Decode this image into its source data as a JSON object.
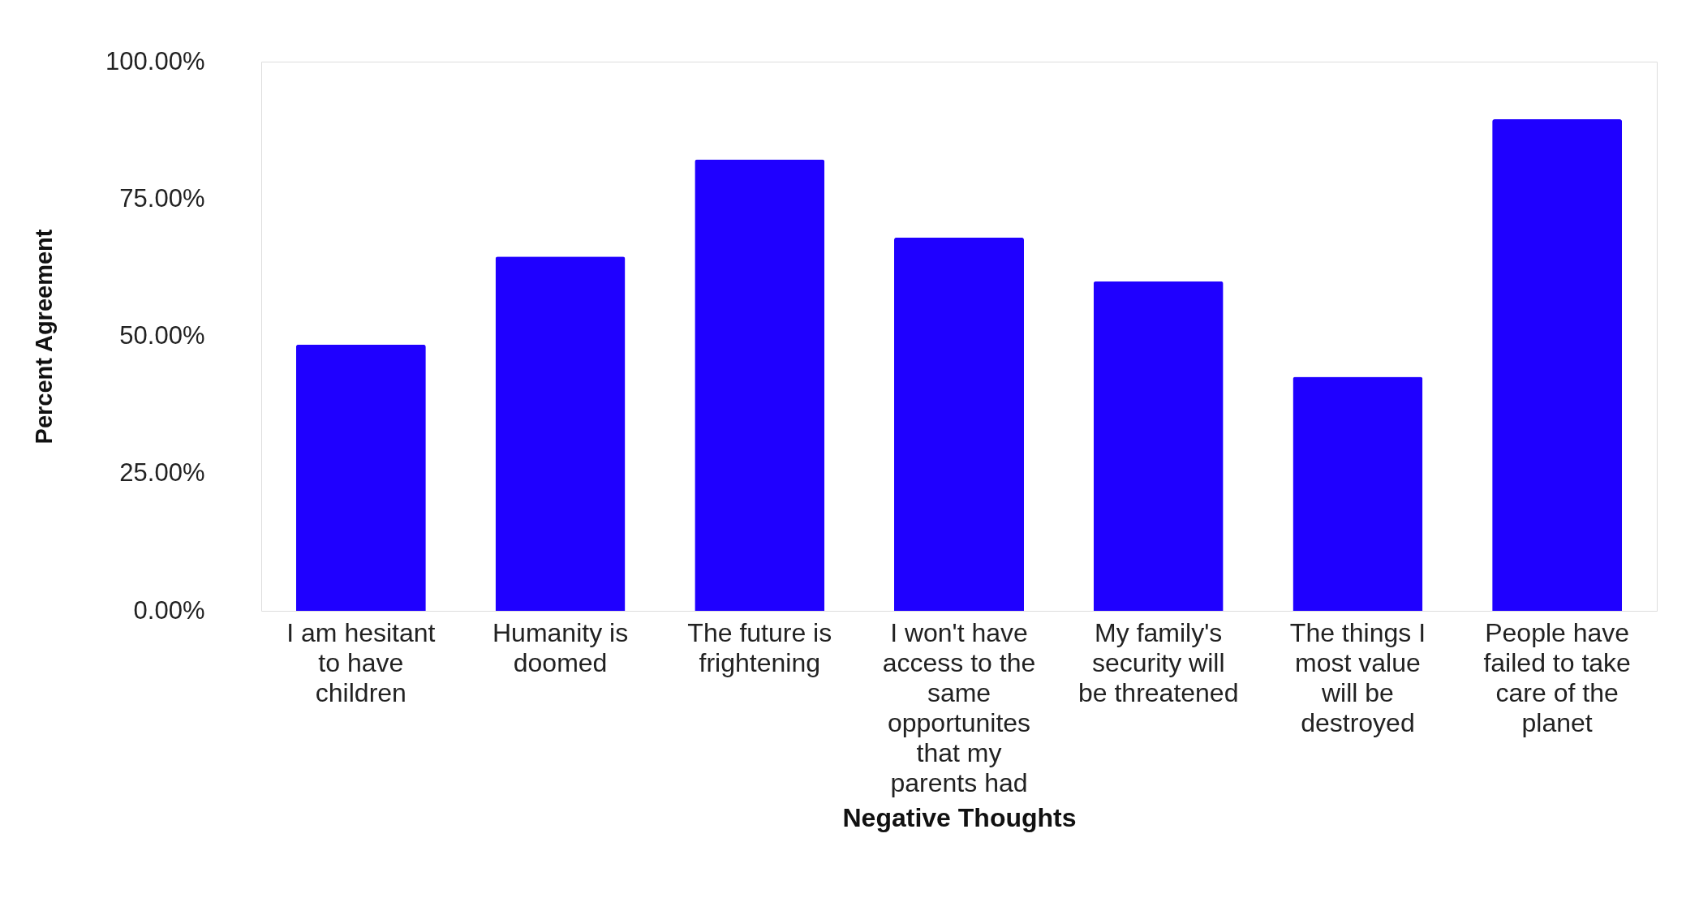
{
  "chart_data": {
    "type": "bar",
    "xlabel": "Negative Thoughts",
    "ylabel": "Percent Agreement",
    "categories": [
      "I am hesitant to have children",
      "Humanity is doomed",
      "The future is frightening",
      "I won't have access to the same opportunites that my parents had",
      "My family's security will be threatened",
      "The things I most value will be destroyed",
      "People have failed to take care of the planet"
    ],
    "values": [
      48.5,
      64.5,
      82.2,
      68.0,
      60.0,
      42.6,
      89.5
    ],
    "color": "#1f00ff",
    "ylim": [
      0,
      100
    ],
    "yticks": [
      {
        "value": 0,
        "label": "0.00%"
      },
      {
        "value": 25,
        "label": "25.00%"
      },
      {
        "value": 50,
        "label": "50.00%"
      },
      {
        "value": 75,
        "label": "75.00%"
      },
      {
        "value": 100,
        "label": "100.00%"
      }
    ],
    "grid": false
  }
}
